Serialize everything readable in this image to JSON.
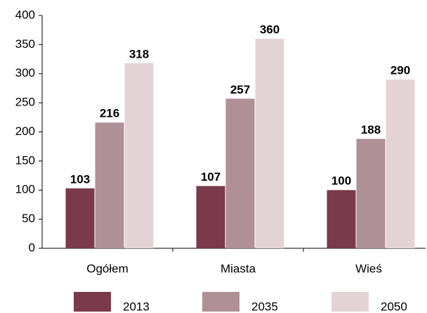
{
  "chart_data": {
    "type": "bar",
    "categories": [
      "Ogółem",
      "Miasta",
      "Wieś"
    ],
    "series": [
      {
        "name": "2013",
        "color": "#7a3a4b",
        "values": [
          103,
          107,
          100
        ]
      },
      {
        "name": "2035",
        "color": "#b09097",
        "values": [
          216,
          257,
          188
        ]
      },
      {
        "name": "2050",
        "color": "#e3d3d7",
        "values": [
          318,
          360,
          290
        ]
      }
    ],
    "ylim": [
      0,
      400
    ],
    "yticks": [
      0,
      50,
      100,
      150,
      200,
      250,
      300,
      350,
      400
    ],
    "grid": false,
    "legend": "bottom",
    "value_labels_shown": true
  }
}
